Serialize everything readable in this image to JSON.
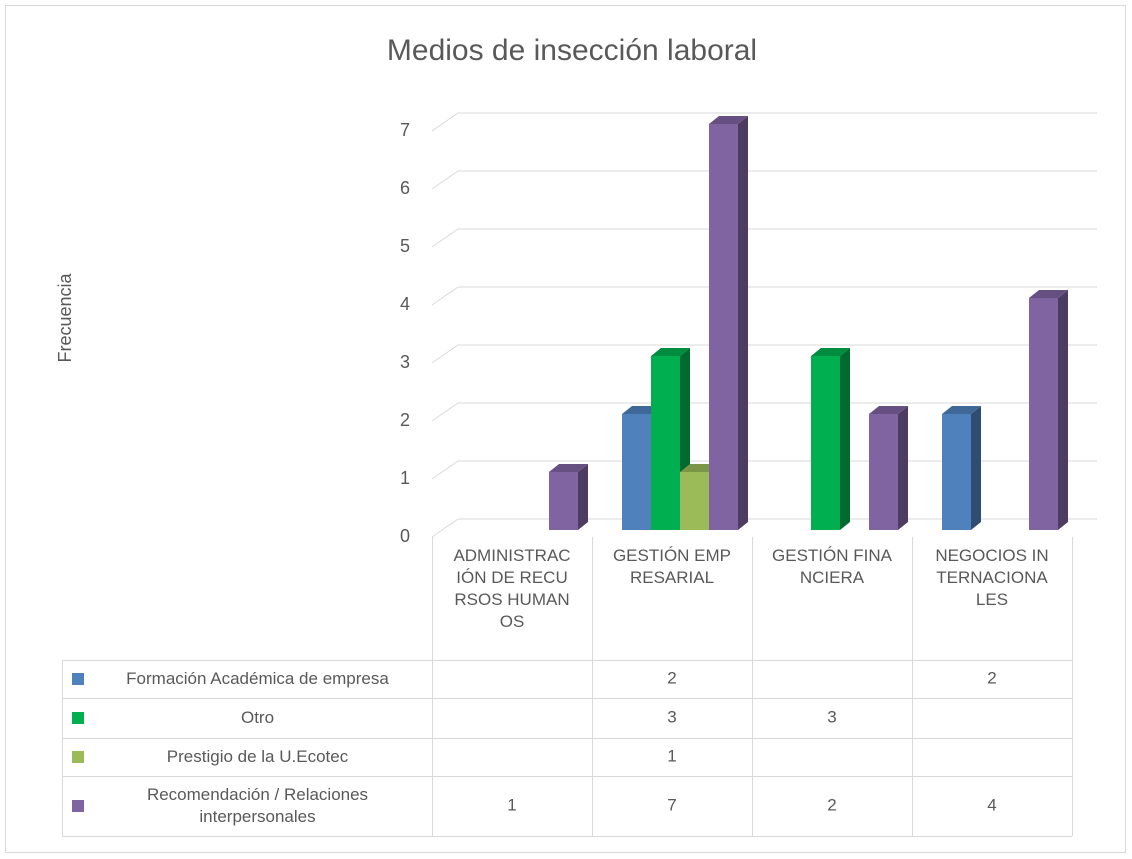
{
  "chart_data": {
    "type": "bar3d",
    "title": "Medios de insección laboral",
    "y_label": "Frecuencia",
    "categories": [
      "ADMINISTRACIÓN DE RECURSOS HUMANOS",
      "GESTIÓN EMPRESARIAL",
      "GESTIÓN FINANCIERA",
      "NEGOCIOS INTERNACIONALES"
    ],
    "series": [
      {
        "name": "Formación Académica de empresa",
        "color": "#4f81bd",
        "values": [
          null,
          2,
          null,
          2
        ]
      },
      {
        "name": "Otro",
        "color": "#00b050",
        "values": [
          null,
          3,
          3,
          null
        ]
      },
      {
        "name": "Prestigio de la U.Ecotec",
        "color": "#9bbb59",
        "values": [
          null,
          1,
          null,
          null
        ]
      },
      {
        "name": "Recomendación / Relaciones interpersonales",
        "color": "#8064a2",
        "values": [
          1,
          7,
          2,
          4
        ]
      }
    ],
    "ylim": [
      0,
      7
    ],
    "yticks": [
      0,
      1,
      2,
      3,
      4,
      5,
      6,
      7
    ],
    "grid": true,
    "data_table": true
  }
}
